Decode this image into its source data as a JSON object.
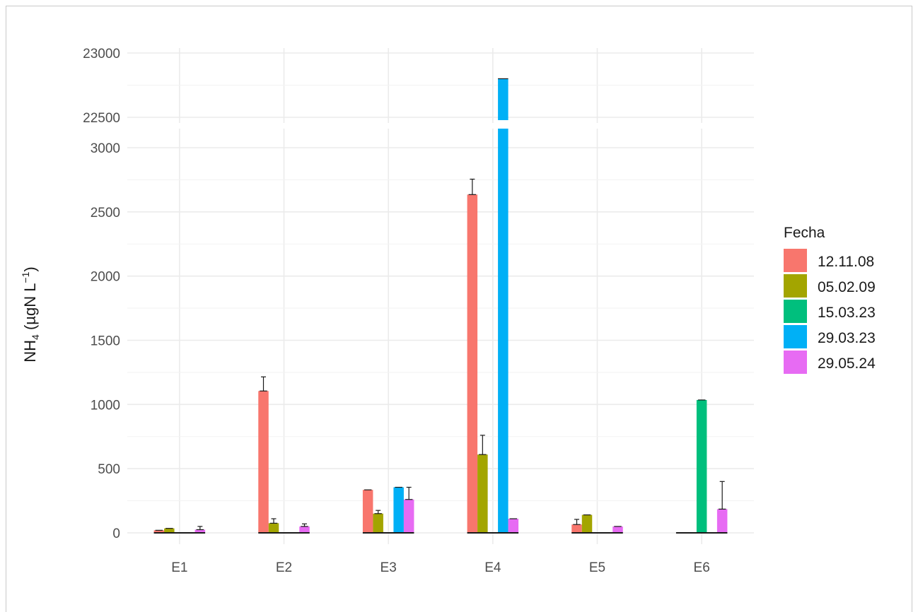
{
  "chart_data": {
    "type": "bar",
    "title": "",
    "xlabel": "",
    "ylabel": {
      "main": "NH",
      "sub": "4",
      "unit_open": " (µgN L",
      "sup": "−1",
      "unit_close": ")"
    },
    "categories": [
      "E1",
      "E2",
      "E3",
      "E4",
      "E5",
      "E6"
    ],
    "legend_title": "Fecha",
    "legend_position": "right",
    "grid": true,
    "axis_break": {
      "lower_range": [
        0,
        3150
      ],
      "upper_range": [
        22400,
        23000
      ]
    },
    "y_ticks_lower": [
      0,
      500,
      1000,
      1500,
      2000,
      2500,
      3000
    ],
    "y_ticks_upper": [
      22500,
      23000
    ],
    "series": [
      {
        "name": "12.11.08",
        "color": "#F8766D",
        "values": [
          20,
          1105,
          335,
          2635,
          65,
          0
        ],
        "errors": [
          0,
          110,
          0,
          120,
          40,
          0
        ]
      },
      {
        "name": "05.02.09",
        "color": "#A3A500",
        "values": [
          35,
          75,
          150,
          610,
          140,
          0
        ],
        "errors": [
          0,
          35,
          25,
          150,
          0,
          0
        ]
      },
      {
        "name": "15.03.23",
        "color": "#00BF7D",
        "values": [
          0,
          0,
          0,
          0,
          0,
          1035
        ],
        "errors": [
          0,
          0,
          0,
          0,
          0,
          0
        ]
      },
      {
        "name": "29.03.23",
        "color": "#00B0F6",
        "values": [
          0,
          0,
          355,
          22800,
          0,
          0
        ],
        "errors": [
          0,
          0,
          0,
          0,
          0,
          0
        ]
      },
      {
        "name": "29.05.24",
        "color": "#E76BF3",
        "values": [
          25,
          50,
          260,
          110,
          50,
          185
        ],
        "errors": [
          25,
          20,
          95,
          0,
          0,
          215
        ]
      }
    ]
  }
}
